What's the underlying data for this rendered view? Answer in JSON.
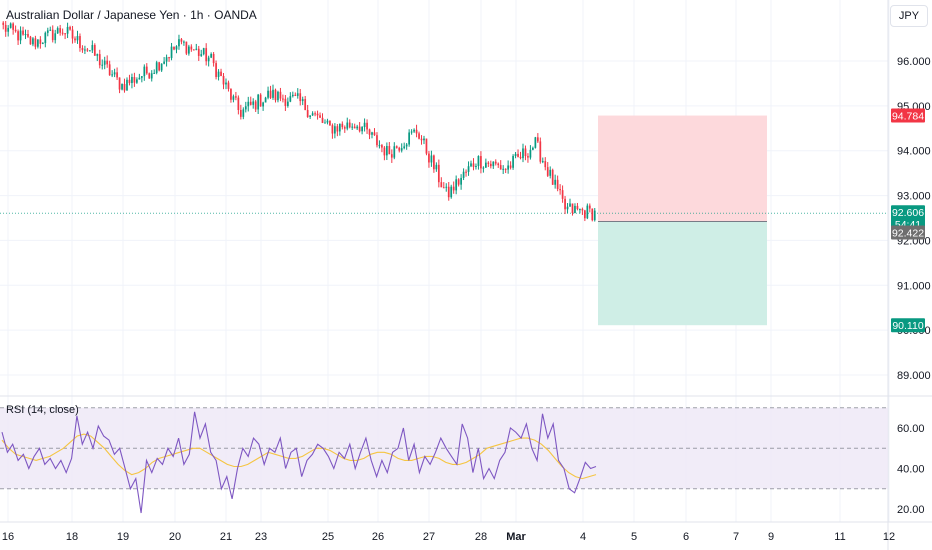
{
  "header": {
    "title": "Australian Dollar / Japanese Yen · 1h · OANDA",
    "currency": "JPY"
  },
  "rsi_panel": {
    "label": "RSI (14, close)"
  },
  "badges": {
    "stop": "94.784",
    "current_price": "92.606",
    "countdown": "54:41",
    "entry": "92.422",
    "target": "90.110"
  },
  "colors": {
    "up": "#089981",
    "down": "#f23645",
    "stop_zone": "#fdd9dc",
    "target_zone": "#cfeee6",
    "rsi_line": "#7e57c2",
    "rsi_ma": "#f5c542",
    "rsi_band": "#ede7f6",
    "price_line": "#089981",
    "entry_badge": "#6e6e6e"
  },
  "chart_data": [
    {
      "type": "candlestick",
      "title": "Australian Dollar / Japanese Yen · 1h · OANDA",
      "x_tick_labels": [
        "16",
        "18",
        "19",
        "20",
        "21",
        "23",
        "25",
        "26",
        "27",
        "28",
        "Mar",
        "4",
        "5",
        "6",
        "7",
        "9",
        "11",
        "12"
      ],
      "y_tick_labels": [
        "96.000",
        "95.000",
        "94.000",
        "93.000",
        "92.000",
        "91.000",
        "90.000",
        "89.000"
      ],
      "ylim": [
        88.7,
        97.0
      ],
      "grid": true,
      "series": [
        {
          "name": "",
          "points": [
            {
              "x": "16",
              "close": 96.75
            },
            {
              "x": "18",
              "close": 96.4
            },
            {
              "x": "19",
              "close": 96.7
            },
            {
              "x": "19",
              "close": 96.2
            },
            {
              "x": "20",
              "close": 95.45
            },
            {
              "x": "20",
              "close": 95.8
            },
            {
              "x": "21",
              "close": 96.4
            },
            {
              "x": "21",
              "close": 96.05
            },
            {
              "x": "23",
              "close": 94.85
            },
            {
              "x": "23",
              "close": 95.25
            },
            {
              "x": "25",
              "close": 95.1
            },
            {
              "x": "25",
              "close": 94.5
            },
            {
              "x": "26",
              "close": 94.6
            },
            {
              "x": "27",
              "close": 93.95
            },
            {
              "x": "27",
              "close": 94.45
            },
            {
              "x": "28",
              "close": 93.0
            },
            {
              "x": "28",
              "close": 93.8
            },
            {
              "x": "Mar",
              "close": 93.6
            },
            {
              "x": "Mar",
              "close": 94.15
            },
            {
              "x": "4",
              "close": 92.7
            },
            {
              "x": "4",
              "close": 92.61
            }
          ]
        }
      ],
      "current_price": 92.606,
      "position": {
        "stop": 94.784,
        "entry": 92.422,
        "target": 90.11
      }
    },
    {
      "type": "line",
      "title": "RSI (14, close)",
      "y_tick_labels": [
        "60.00",
        "40.00",
        "20.00"
      ],
      "ylim": [
        15,
        75
      ],
      "bands": [
        30,
        50,
        70
      ],
      "series": [
        {
          "name": "RSI",
          "values": [
            58,
            48,
            52,
            44,
            47,
            40,
            46,
            50,
            42,
            45,
            40,
            44,
            38,
            45,
            66,
            52,
            58,
            50,
            61,
            56,
            54,
            47,
            50,
            40,
            30,
            35,
            18,
            44,
            38,
            45,
            42,
            50,
            46,
            55,
            42,
            47,
            68,
            55,
            62,
            48,
            44,
            30,
            36,
            25,
            40,
            50,
            46,
            55,
            52,
            42,
            50,
            48,
            55,
            40,
            48,
            50,
            36,
            44,
            47,
            52,
            50,
            46,
            40,
            48,
            45,
            52,
            40,
            48,
            55,
            44,
            36,
            44,
            38,
            48,
            50,
            60,
            44,
            52,
            38,
            46,
            42,
            48,
            55,
            50,
            46,
            42,
            62,
            55,
            38,
            50,
            35,
            40,
            35,
            44,
            48,
            60,
            58,
            55,
            62,
            50,
            44,
            67,
            55,
            62,
            44,
            40,
            30,
            28,
            35,
            43,
            40,
            41
          ]
        },
        {
          "name": "RSI MA",
          "values": [
            54,
            50,
            47,
            46,
            45,
            44,
            45,
            46,
            48,
            50,
            53,
            56,
            57,
            56,
            53,
            50,
            46,
            42,
            39,
            37,
            38,
            40,
            43,
            45,
            46,
            47,
            48,
            49,
            50,
            50,
            48,
            46,
            44,
            42,
            41,
            41,
            42,
            44,
            46,
            48,
            47,
            46,
            45,
            45,
            46,
            48,
            50,
            50,
            49,
            47,
            45,
            44,
            44,
            45,
            47,
            48,
            48,
            47,
            45,
            44,
            44,
            45,
            46,
            46,
            45,
            43,
            42,
            42,
            43,
            45,
            47,
            50,
            51,
            52,
            53,
            54,
            55,
            55,
            54,
            52,
            49,
            45,
            41,
            38,
            36,
            35,
            36,
            37
          ]
        }
      ]
    }
  ]
}
